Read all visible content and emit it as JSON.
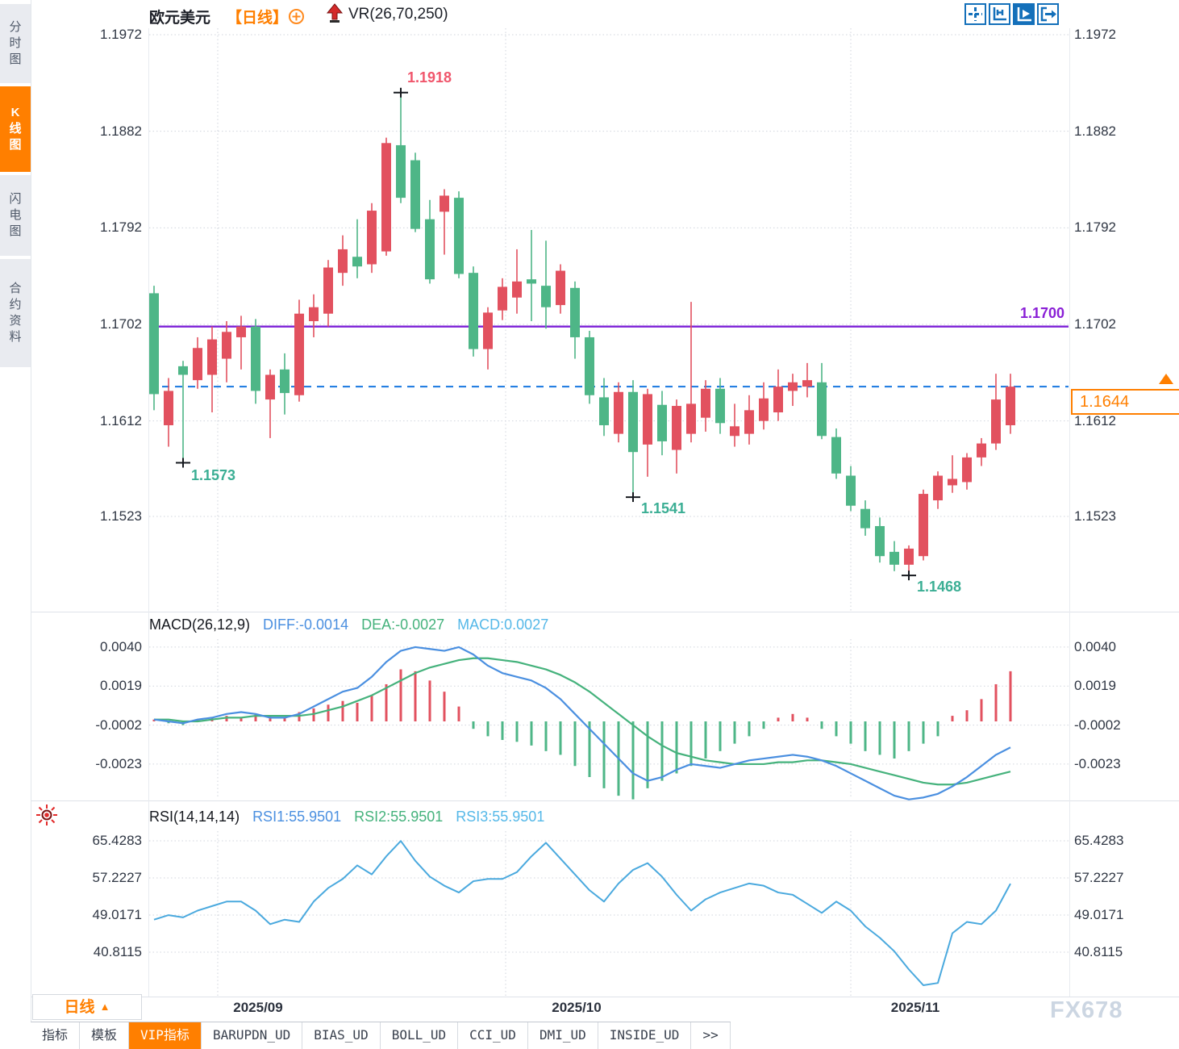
{
  "header": {
    "symbol": "欧元美元",
    "period_tag": "【日线】",
    "vr_label": "VR(26,70,250)"
  },
  "sidebar": {
    "tabs": [
      {
        "label": "分时图",
        "active": false
      },
      {
        "label": "K线图",
        "active": true
      },
      {
        "label": "闪电图",
        "active": false
      },
      {
        "label": "合约资料",
        "active": false
      }
    ]
  },
  "toolbar_icons": [
    "crosshair-icon",
    "axis-scale-icon",
    "auto-play-icon",
    "export-right-icon"
  ],
  "price_axis_labels": [
    "1.1972",
    "1.1882",
    "1.1792",
    "1.1702",
    "1.1612",
    "1.1523"
  ],
  "overlays": {
    "hline_label": "1.1700",
    "last_price": "1.1644"
  },
  "annotations": {
    "high": "1.1918",
    "low1": "1.1573",
    "low2": "1.1541",
    "low3": "1.1468"
  },
  "macd_header": {
    "title": "MACD(26,12,9)",
    "diff": "DIFF:-0.0014",
    "dea": "DEA:-0.0027",
    "macd": "MACD:0.0027"
  },
  "rsi_header": {
    "title": "RSI(14,14,14)",
    "rsi1": "RSI1:55.9501",
    "rsi2": "RSI2:55.9501",
    "rsi3": "RSI3:55.9501"
  },
  "xaxis": {
    "labels": [
      "2025/09",
      "2025/10",
      "2025/11"
    ],
    "period_selector": "日线",
    "dropdown_arrow": "▲"
  },
  "bottom_tabs": {
    "items": [
      "指标",
      "模板",
      "VIP指标",
      "BARUPDN_UD",
      "BIAS_UD",
      "BOLL_UD",
      "CCI_UD",
      "DMI_UD",
      "INSIDE_UD",
      ">>"
    ],
    "active": "VIP指标"
  },
  "watermark": "FX678",
  "colors": {
    "accent_orange": "#ff7f00",
    "bull_red": "#e2515f",
    "bear_green": "#4eb687",
    "purple_line": "#7b1fd6",
    "dashed_blue": "#1877e0",
    "diff_blue": "#4a8fe0",
    "dea_green": "#45b27c",
    "macd_lightblue": "#55b8e8",
    "rsi_blue": "#4aa9de",
    "annotation_red": "#f0566c",
    "annotation_green": "#3bae94",
    "icon_blue": "#1470ba",
    "grid_gray": "#d0d5dd",
    "marker_black": "#15181e"
  },
  "chart_data": [
    {
      "type": "candlestick",
      "title": "欧元美元 日线",
      "ylabel": "price",
      "yticks": [
        1.1972,
        1.1882,
        1.1792,
        1.1702,
        1.1612,
        1.1523
      ],
      "ylim": [
        1.1434,
        1.1978
      ],
      "x_labels": [
        "2025/09",
        "2025/10",
        "2025/11"
      ],
      "hline": 1.17,
      "last_price": 1.1644,
      "grid": true,
      "candles": [
        [
          1.1731,
          1.1738,
          1.1622,
          1.1637
        ],
        [
          1.1608,
          1.1652,
          1.1588,
          1.164
        ],
        [
          1.1663,
          1.1668,
          1.1573,
          1.1655
        ],
        [
          1.165,
          1.169,
          1.1642,
          1.168
        ],
        [
          1.1655,
          1.17,
          1.162,
          1.1688
        ],
        [
          1.167,
          1.1705,
          1.1648,
          1.1695
        ],
        [
          1.169,
          1.171,
          1.166,
          1.17
        ],
        [
          1.17,
          1.1707,
          1.1628,
          1.164
        ],
        [
          1.1632,
          1.166,
          1.1596,
          1.1655
        ],
        [
          1.166,
          1.1675,
          1.1618,
          1.1638
        ],
        [
          1.1636,
          1.1725,
          1.163,
          1.1712
        ],
        [
          1.1705,
          1.173,
          1.169,
          1.1718
        ],
        [
          1.1712,
          1.1762,
          1.17,
          1.1755
        ],
        [
          1.175,
          1.1785,
          1.1738,
          1.1772
        ],
        [
          1.1765,
          1.18,
          1.1745,
          1.1756
        ],
        [
          1.1758,
          1.1815,
          1.175,
          1.1808
        ],
        [
          1.177,
          1.1876,
          1.1766,
          1.1871
        ],
        [
          1.1869,
          1.1918,
          1.1815,
          1.182
        ],
        [
          1.1855,
          1.1862,
          1.1788,
          1.1791
        ],
        [
          1.18,
          1.1818,
          1.174,
          1.1744
        ],
        [
          1.1807,
          1.1828,
          1.1767,
          1.1822
        ],
        [
          1.182,
          1.1826,
          1.1745,
          1.1749
        ],
        [
          1.175,
          1.1756,
          1.1672,
          1.1679
        ],
        [
          1.1679,
          1.1718,
          1.166,
          1.1713
        ],
        [
          1.1715,
          1.1745,
          1.1706,
          1.1737
        ],
        [
          1.1727,
          1.1772,
          1.1712,
          1.1742
        ],
        [
          1.1744,
          1.179,
          1.1705,
          1.174
        ],
        [
          1.1738,
          1.178,
          1.1698,
          1.1718
        ],
        [
          1.172,
          1.1758,
          1.1712,
          1.1752
        ],
        [
          1.1736,
          1.1742,
          1.167,
          1.169
        ],
        [
          1.169,
          1.1696,
          1.1628,
          1.1636
        ],
        [
          1.1634,
          1.1652,
          1.1598,
          1.1608
        ],
        [
          1.16,
          1.1648,
          1.1592,
          1.1639
        ],
        [
          1.1639,
          1.165,
          1.1541,
          1.1583
        ],
        [
          1.159,
          1.1642,
          1.156,
          1.1637
        ],
        [
          1.1627,
          1.164,
          1.158,
          1.1593
        ],
        [
          1.1585,
          1.1632,
          1.1563,
          1.1626
        ],
        [
          1.16,
          1.1723,
          1.1592,
          1.1628
        ],
        [
          1.1615,
          1.165,
          1.1602,
          1.1642
        ],
        [
          1.1642,
          1.1652,
          1.16,
          1.161
        ],
        [
          1.1598,
          1.1628,
          1.1588,
          1.1607
        ],
        [
          1.16,
          1.1636,
          1.159,
          1.1622
        ],
        [
          1.1612,
          1.1648,
          1.1604,
          1.1633
        ],
        [
          1.162,
          1.166,
          1.1612,
          1.1644
        ],
        [
          1.164,
          1.1656,
          1.1626,
          1.1648
        ],
        [
          1.1644,
          1.1666,
          1.1634,
          1.165
        ],
        [
          1.1648,
          1.1666,
          1.1595,
          1.1598
        ],
        [
          1.1597,
          1.1605,
          1.1558,
          1.1563
        ],
        [
          1.1561,
          1.157,
          1.1528,
          1.1533
        ],
        [
          1.153,
          1.1538,
          1.1505,
          1.1512
        ],
        [
          1.1514,
          1.1522,
          1.148,
          1.1486
        ],
        [
          1.149,
          1.15,
          1.1472,
          1.1478
        ],
        [
          1.1478,
          1.1496,
          1.1468,
          1.1493
        ],
        [
          1.1486,
          1.1548,
          1.1482,
          1.1544
        ],
        [
          1.1538,
          1.1565,
          1.153,
          1.1561
        ],
        [
          1.1552,
          1.158,
          1.1545,
          1.1558
        ],
        [
          1.1555,
          1.1582,
          1.1548,
          1.1578
        ],
        [
          1.1578,
          1.1596,
          1.157,
          1.1591
        ],
        [
          1.1591,
          1.1656,
          1.1585,
          1.1632
        ],
        [
          1.1608,
          1.1656,
          1.16,
          1.1644
        ]
      ],
      "marked_points": [
        {
          "index": 17,
          "type": "high",
          "label": "1.1918"
        },
        {
          "index": 2,
          "type": "low",
          "label": "1.1573"
        },
        {
          "index": 33,
          "type": "low",
          "label": "1.1541"
        },
        {
          "index": 52,
          "type": "low",
          "label": "1.1468"
        }
      ]
    },
    {
      "type": "bar",
      "name": "MACD(26,12,9)",
      "yticks": [
        0.004,
        0.0019,
        -0.0002,
        -0.0023
      ],
      "current": {
        "diff": -0.0014,
        "dea": -0.0027,
        "macd": 0.0027
      },
      "histogram": [
        0.0001,
        -0.0001,
        -0.0002,
        0.0001,
        0.0002,
        0.0003,
        0.0002,
        0.0004,
        0.0003,
        0.0002,
        0.0005,
        0.0007,
        0.0009,
        0.0011,
        0.001,
        0.0014,
        0.002,
        0.0028,
        0.0027,
        0.0022,
        0.0016,
        0.0008,
        -0.0004,
        -0.0008,
        -0.001,
        -0.0011,
        -0.0013,
        -0.0016,
        -0.0018,
        -0.0024,
        -0.003,
        -0.0036,
        -0.004,
        -0.0042,
        -0.0036,
        -0.0032,
        -0.0028,
        -0.0024,
        -0.002,
        -0.0016,
        -0.0012,
        -0.0008,
        -0.0004,
        0.0002,
        0.0004,
        0.0002,
        -0.0004,
        -0.0008,
        -0.0012,
        -0.0016,
        -0.0018,
        -0.002,
        -0.0016,
        -0.0012,
        -0.0008,
        0.0003,
        0.0006,
        0.0012,
        0.002,
        0.0027
      ],
      "diff": [
        0.0001,
        0.0,
        -0.0001,
        0.0001,
        0.0002,
        0.0004,
        0.0005,
        0.0004,
        0.0002,
        0.0002,
        0.0004,
        0.0008,
        0.0012,
        0.0016,
        0.0018,
        0.0024,
        0.0032,
        0.0038,
        0.004,
        0.0039,
        0.0038,
        0.004,
        0.0036,
        0.003,
        0.0026,
        0.0024,
        0.0022,
        0.0018,
        0.0012,
        0.0004,
        -0.0004,
        -0.0012,
        -0.002,
        -0.0028,
        -0.0032,
        -0.003,
        -0.0026,
        -0.0023,
        -0.0024,
        -0.0025,
        -0.0023,
        -0.0021,
        -0.002,
        -0.0019,
        -0.0018,
        -0.0019,
        -0.0021,
        -0.0024,
        -0.0028,
        -0.0032,
        -0.0036,
        -0.004,
        -0.0042,
        -0.0041,
        -0.0039,
        -0.0035,
        -0.003,
        -0.0024,
        -0.0018,
        -0.0014
      ],
      "dea": [
        0.0001,
        0.0001,
        0.0,
        0.0,
        0.0001,
        0.0002,
        0.0002,
        0.0003,
        0.0003,
        0.0003,
        0.0003,
        0.0004,
        0.0006,
        0.0008,
        0.0011,
        0.0014,
        0.0018,
        0.0022,
        0.0026,
        0.0029,
        0.0031,
        0.0033,
        0.0034,
        0.0034,
        0.0033,
        0.0032,
        0.003,
        0.0028,
        0.0025,
        0.0021,
        0.0016,
        0.001,
        0.0004,
        -0.0002,
        -0.0008,
        -0.0013,
        -0.0017,
        -0.0019,
        -0.0021,
        -0.0022,
        -0.0023,
        -0.0023,
        -0.0023,
        -0.0022,
        -0.0022,
        -0.0021,
        -0.0021,
        -0.0022,
        -0.0023,
        -0.0025,
        -0.0027,
        -0.0029,
        -0.0031,
        -0.0033,
        -0.0034,
        -0.0034,
        -0.0033,
        -0.0031,
        -0.0029,
        -0.0027
      ]
    },
    {
      "type": "line",
      "name": "RSI(14,14,14)",
      "yticks": [
        65.4283,
        57.2227,
        49.0171,
        40.8115
      ],
      "current": 55.9501,
      "rsi": [
        48,
        49,
        48.5,
        50,
        51,
        52,
        52,
        50,
        47,
        48,
        47.5,
        52,
        55,
        57,
        60,
        58,
        62,
        65.4,
        61,
        57.5,
        55.5,
        54,
        56.5,
        57,
        57,
        58.5,
        62,
        65,
        61.5,
        58,
        54.5,
        52,
        56,
        59,
        60.5,
        57.5,
        53.5,
        50,
        52.5,
        54,
        55,
        56,
        55.5,
        54,
        53.5,
        51.5,
        49.5,
        52,
        50,
        46.5,
        44,
        41,
        37,
        33.5,
        34,
        45,
        47.5,
        47,
        50,
        55.95
      ]
    }
  ]
}
